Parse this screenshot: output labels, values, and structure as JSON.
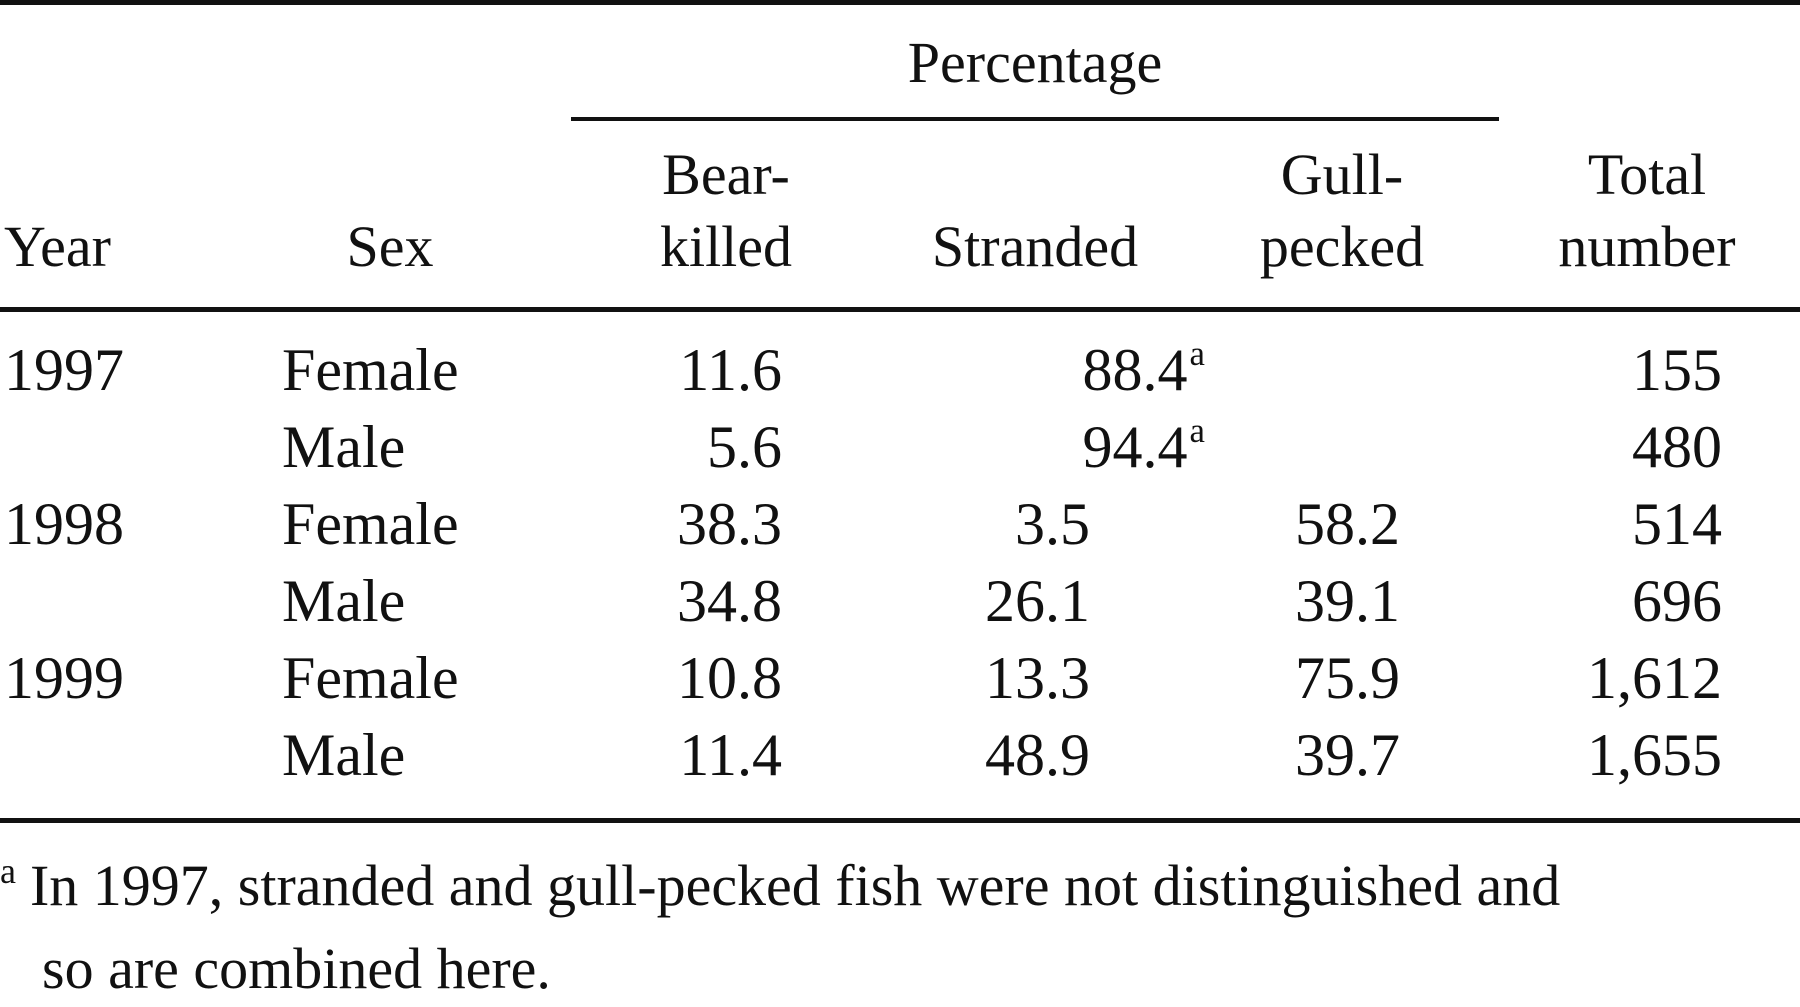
{
  "header": {
    "group_label": "Percentage",
    "year": "Year",
    "sex": "Sex",
    "bear_killed": [
      "Bear-",
      "killed"
    ],
    "stranded": "Stranded",
    "gull_pecked": [
      "Gull-",
      "pecked"
    ],
    "total": [
      "Total",
      "number"
    ]
  },
  "rows": [
    {
      "year": "1997",
      "sex": "Female",
      "bear": "11.6",
      "combined": "88.4",
      "mark": "a",
      "total": "155"
    },
    {
      "year": "",
      "sex": "Male",
      "bear": "5.6",
      "combined": "94.4",
      "mark": "a",
      "total": "480"
    },
    {
      "year": "1998",
      "sex": "Female",
      "bear": "38.3",
      "stranded": "3.5",
      "gull": "58.2",
      "total": "514"
    },
    {
      "year": "",
      "sex": "Male",
      "bear": "34.8",
      "stranded": "26.1",
      "gull": "39.1",
      "total": "696"
    },
    {
      "year": "1999",
      "sex": "Female",
      "bear": "10.8",
      "stranded": "13.3",
      "gull": "75.9",
      "total": "1,612"
    },
    {
      "year": "",
      "sex": "Male",
      "bear": "11.4",
      "stranded": "48.9",
      "gull": "39.7",
      "total": "1,655"
    }
  ],
  "footnote": {
    "mark": "a",
    "line1": "In 1997, stranded and gull-pecked fish were not distinguished and",
    "line2": "so are combined here."
  }
}
